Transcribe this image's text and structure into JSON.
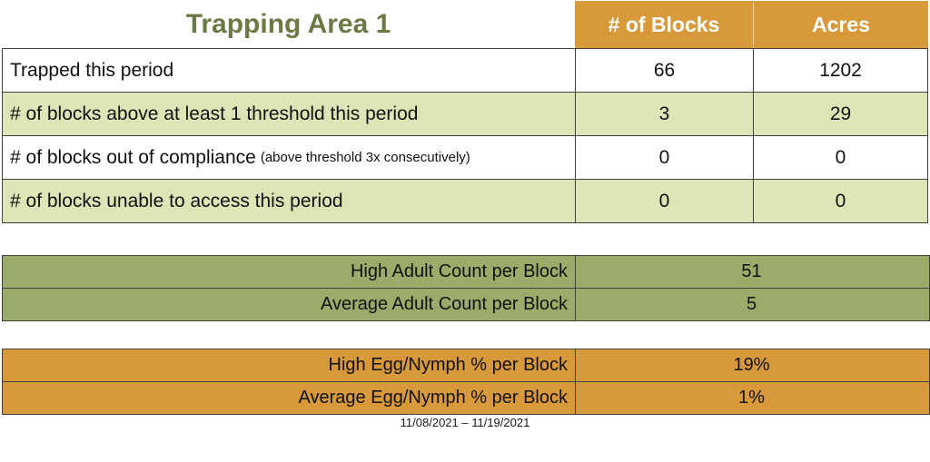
{
  "title": "Trapping Area 1",
  "header": {
    "col_blocks": "# of Blocks",
    "col_acres": "Acres"
  },
  "main_table": {
    "rows": [
      {
        "label": "Trapped this period",
        "note": "",
        "blocks": "66",
        "acres": "1202"
      },
      {
        "label": "# of blocks above at least 1 threshold this period",
        "note": "",
        "blocks": "3",
        "acres": "29"
      },
      {
        "label": "# of blocks out of compliance",
        "note": "(above threshold 3x consecutively)",
        "blocks": "0",
        "acres": "0"
      },
      {
        "label": "# of blocks unable to access this period",
        "note": "",
        "blocks": "0",
        "acres": "0"
      }
    ]
  },
  "adult_table": {
    "rows": [
      {
        "label": "High Adult Count per Block",
        "value": "51"
      },
      {
        "label": "Average Adult Count per Block",
        "value": "5"
      }
    ]
  },
  "egg_table": {
    "rows": [
      {
        "label": "High Egg/Nymph % per Block",
        "value": "19%"
      },
      {
        "label": "Average Egg/Nymph % per Block",
        "value": "1%"
      }
    ]
  },
  "footer": {
    "date_range": "11/08/2021 – 11/19/2021"
  },
  "colors": {
    "header_orange": "#D8993B",
    "row_light_green": "#DCE5B5",
    "adult_olive": "#9BAC6A",
    "title_green": "#6B7A44",
    "border": "#404040"
  }
}
